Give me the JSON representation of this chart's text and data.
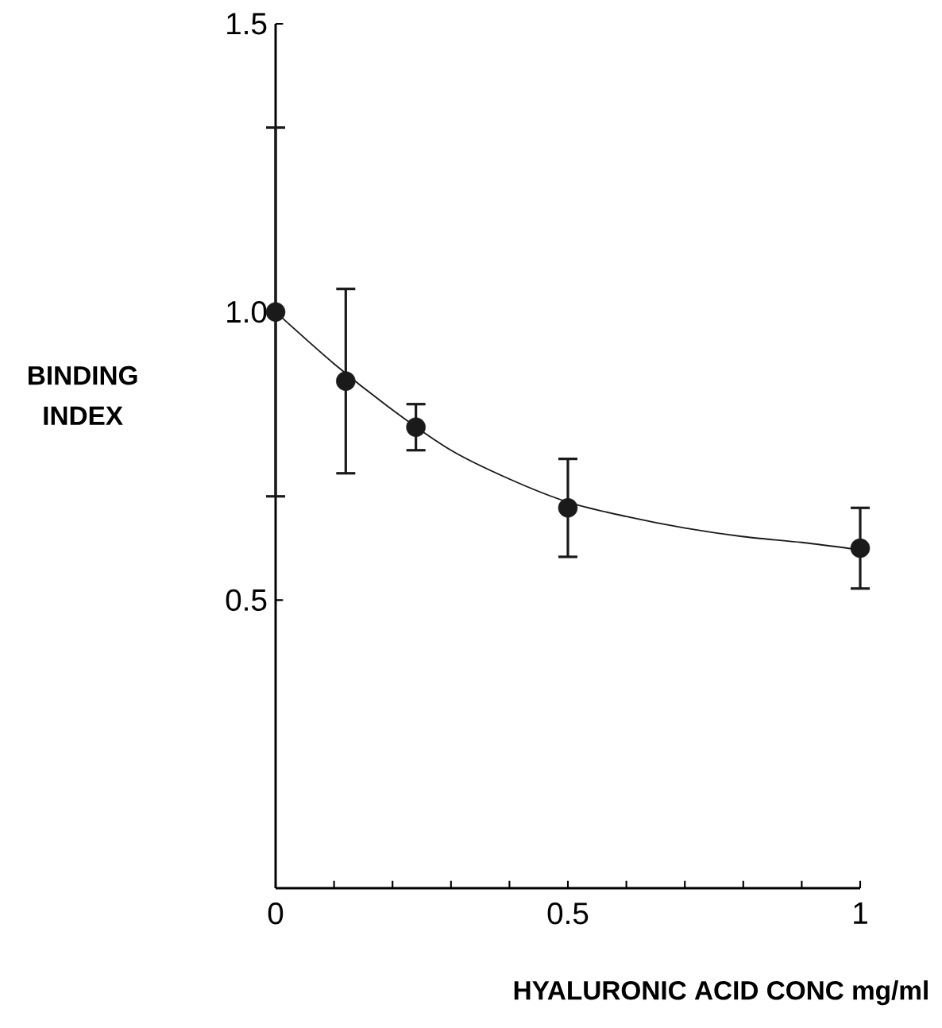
{
  "chart_data": {
    "type": "line",
    "xlabel": "HYALURONIC ACID CONC mg/ml",
    "ylabel": "BINDING INDEX",
    "xlim": [
      0,
      1
    ],
    "ylim": [
      0,
      1.5
    ],
    "xticks": [
      0,
      {
        "value": 0.1,
        "label": null
      },
      {
        "value": 0.2,
        "label": null
      },
      {
        "value": 0.3,
        "label": null
      },
      {
        "value": 0.4,
        "label": null
      },
      0.5,
      {
        "value": 0.6,
        "label": null
      },
      {
        "value": 0.7,
        "label": null
      },
      {
        "value": 0.8,
        "label": null
      },
      {
        "value": 0.9,
        "label": null
      },
      1
    ],
    "yticks": [
      0.5,
      {
        "value": 1.0,
        "label": "1.0"
      },
      1.5
    ],
    "series": [
      {
        "type": "scatter",
        "color": "#1a1a1a",
        "marker": "circle",
        "x": [
          0,
          0.12,
          0.24,
          0.5,
          1
        ],
        "values": [
          1.0,
          0.88,
          0.8,
          0.66,
          0.59
        ],
        "errors": [
          0.32,
          0.16,
          0.04,
          0.085,
          0.07
        ]
      },
      {
        "color": "#1a1a1a",
        "marker": "none",
        "line_style": "solid",
        "x": [
          0,
          0.1,
          0.2,
          0.3,
          0.4,
          0.5,
          0.6,
          0.7,
          0.8,
          0.9,
          1
        ],
        "values": [
          1.0,
          0.91,
          0.83,
          0.76,
          0.71,
          0.67,
          0.645,
          0.625,
          0.61,
          0.6,
          0.587
        ]
      }
    ]
  }
}
